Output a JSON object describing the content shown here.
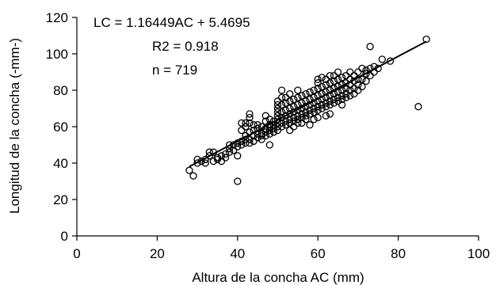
{
  "chart_data": {
    "type": "scatter",
    "xlabel": "Altura de la concha AC (mm)",
    "ylabel": "Longitud de la concha (-mm-)",
    "xlim": [
      0,
      100
    ],
    "ylim": [
      0,
      120
    ],
    "xticks": [
      0,
      20,
      40,
      60,
      80,
      100
    ],
    "yticks": [
      0,
      20,
      40,
      60,
      80,
      100,
      120
    ],
    "grid": false,
    "annotations": [
      "LC = 1.16449AC + 5.4695",
      "R2 = 0.918",
      "n = 719"
    ],
    "trendline": {
      "slope": 1.16449,
      "intercept": 5.4695,
      "x_range": [
        28,
        87
      ]
    },
    "series": [
      {
        "marker": "circle-open",
        "points": [
          [
            28,
            36
          ],
          [
            29,
            33
          ],
          [
            30,
            40
          ],
          [
            30,
            42
          ],
          [
            31,
            41
          ],
          [
            32,
            40
          ],
          [
            32,
            42
          ],
          [
            33,
            44
          ],
          [
            33,
            46
          ],
          [
            34,
            46
          ],
          [
            34,
            41
          ],
          [
            35,
            43
          ],
          [
            35,
            42
          ],
          [
            36,
            44
          ],
          [
            36,
            41
          ],
          [
            37,
            45
          ],
          [
            37,
            43
          ],
          [
            38,
            46
          ],
          [
            38,
            48
          ],
          [
            38,
            50
          ],
          [
            39,
            47
          ],
          [
            39,
            50
          ],
          [
            40,
            49
          ],
          [
            40,
            51
          ],
          [
            40,
            44
          ],
          [
            40,
            30
          ],
          [
            41,
            52
          ],
          [
            41,
            50
          ],
          [
            41,
            62
          ],
          [
            41,
            58
          ],
          [
            42,
            53
          ],
          [
            42,
            51
          ],
          [
            42,
            55
          ],
          [
            42,
            62
          ],
          [
            42,
            60
          ],
          [
            43,
            53
          ],
          [
            43,
            51
          ],
          [
            43,
            57
          ],
          [
            43,
            67
          ],
          [
            43,
            65
          ],
          [
            43,
            62
          ],
          [
            44,
            55
          ],
          [
            44,
            52
          ],
          [
            44,
            58
          ],
          [
            44,
            61
          ],
          [
            45,
            56
          ],
          [
            45,
            54
          ],
          [
            45,
            59
          ],
          [
            45,
            61
          ],
          [
            46,
            56
          ],
          [
            46,
            55
          ],
          [
            46,
            60
          ],
          [
            46,
            53
          ],
          [
            47,
            57
          ],
          [
            47,
            55
          ],
          [
            47,
            59
          ],
          [
            47,
            66
          ],
          [
            47,
            63
          ],
          [
            48,
            58
          ],
          [
            48,
            56
          ],
          [
            48,
            60
          ],
          [
            48,
            64
          ],
          [
            48,
            61
          ],
          [
            48,
            50
          ],
          [
            49,
            59
          ],
          [
            49,
            57
          ],
          [
            49,
            61
          ],
          [
            49,
            63
          ],
          [
            50,
            60
          ],
          [
            50,
            58
          ],
          [
            50,
            62
          ],
          [
            50,
            64
          ],
          [
            50,
            66
          ],
          [
            50,
            68
          ],
          [
            50,
            70
          ],
          [
            50,
            72
          ],
          [
            50,
            74
          ],
          [
            51,
            60
          ],
          [
            51,
            62
          ],
          [
            51,
            65
          ],
          [
            51,
            68
          ],
          [
            51,
            72
          ],
          [
            51,
            76
          ],
          [
            51,
            80
          ],
          [
            52,
            61
          ],
          [
            52,
            63
          ],
          [
            52,
            66
          ],
          [
            52,
            69
          ],
          [
            52,
            73
          ],
          [
            52,
            76
          ],
          [
            53,
            62
          ],
          [
            53,
            64
          ],
          [
            53,
            67
          ],
          [
            53,
            70
          ],
          [
            53,
            74
          ],
          [
            53,
            78
          ],
          [
            53,
            58
          ],
          [
            54,
            63
          ],
          [
            54,
            65
          ],
          [
            54,
            68
          ],
          [
            54,
            71
          ],
          [
            54,
            75
          ],
          [
            54,
            60
          ],
          [
            55,
            64
          ],
          [
            55,
            66
          ],
          [
            55,
            69
          ],
          [
            55,
            72
          ],
          [
            55,
            76
          ],
          [
            55,
            80
          ],
          [
            55,
            62
          ],
          [
            56,
            65
          ],
          [
            56,
            67
          ],
          [
            56,
            70
          ],
          [
            56,
            73
          ],
          [
            56,
            77
          ],
          [
            56,
            62
          ],
          [
            57,
            66
          ],
          [
            57,
            68
          ],
          [
            57,
            71
          ],
          [
            57,
            74
          ],
          [
            57,
            78
          ],
          [
            57,
            64
          ],
          [
            58,
            67
          ],
          [
            58,
            69
          ],
          [
            58,
            72
          ],
          [
            58,
            75
          ],
          [
            58,
            79
          ],
          [
            58,
            61
          ],
          [
            59,
            68
          ],
          [
            59,
            70
          ],
          [
            59,
            73
          ],
          [
            59,
            76
          ],
          [
            59,
            80
          ],
          [
            59,
            64
          ],
          [
            60,
            69
          ],
          [
            60,
            71
          ],
          [
            60,
            74
          ],
          [
            60,
            77
          ],
          [
            60,
            81
          ],
          [
            60,
            84
          ],
          [
            60,
            86
          ],
          [
            60,
            65
          ],
          [
            61,
            70
          ],
          [
            61,
            72
          ],
          [
            61,
            75
          ],
          [
            61,
            78
          ],
          [
            61,
            82
          ],
          [
            61,
            87
          ],
          [
            62,
            71
          ],
          [
            62,
            73
          ],
          [
            62,
            76
          ],
          [
            62,
            79
          ],
          [
            62,
            83
          ],
          [
            62,
            86
          ],
          [
            62,
            66
          ],
          [
            63,
            72
          ],
          [
            63,
            74
          ],
          [
            63,
            77
          ],
          [
            63,
            80
          ],
          [
            63,
            84
          ],
          [
            63,
            88
          ],
          [
            63,
            67
          ],
          [
            64,
            73
          ],
          [
            64,
            75
          ],
          [
            64,
            78
          ],
          [
            64,
            81
          ],
          [
            64,
            85
          ],
          [
            64,
            88
          ],
          [
            65,
            74
          ],
          [
            65,
            76
          ],
          [
            65,
            79
          ],
          [
            65,
            82
          ],
          [
            65,
            86
          ],
          [
            65,
            90
          ],
          [
            66,
            75
          ],
          [
            66,
            77
          ],
          [
            66,
            80
          ],
          [
            66,
            83
          ],
          [
            66,
            87
          ],
          [
            66,
            72
          ],
          [
            67,
            76
          ],
          [
            67,
            78
          ],
          [
            67,
            81
          ],
          [
            67,
            84
          ],
          [
            67,
            88
          ],
          [
            68,
            77
          ],
          [
            68,
            80
          ],
          [
            68,
            83
          ],
          [
            68,
            86
          ],
          [
            68,
            90
          ],
          [
            69,
            78
          ],
          [
            69,
            81
          ],
          [
            69,
            85
          ],
          [
            69,
            88
          ],
          [
            70,
            80
          ],
          [
            70,
            83
          ],
          [
            70,
            86
          ],
          [
            70,
            90
          ],
          [
            71,
            82
          ],
          [
            71,
            86
          ],
          [
            71,
            92
          ],
          [
            72,
            85
          ],
          [
            72,
            89
          ],
          [
            72,
            91
          ],
          [
            73,
            88
          ],
          [
            73,
            92
          ],
          [
            73,
            104
          ],
          [
            74,
            90
          ],
          [
            74,
            93
          ],
          [
            75,
            92
          ],
          [
            76,
            97
          ],
          [
            78,
            96
          ],
          [
            85,
            71
          ],
          [
            87,
            108
          ]
        ]
      }
    ]
  }
}
